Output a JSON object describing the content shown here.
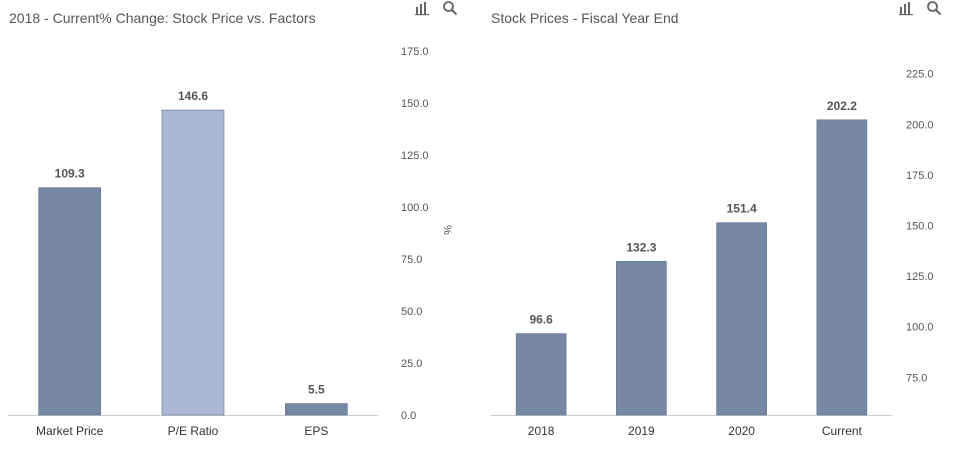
{
  "icons": {
    "chart_type": "bar-chart-icon",
    "zoom": "search-icon"
  },
  "chart_data": [
    {
      "type": "bar",
      "title": "2018 - Current% Change: Stock Price vs. Factors",
      "categories": [
        "Market Price",
        "P/E Ratio",
        "EPS"
      ],
      "values": [
        109.3,
        146.6,
        5.5
      ],
      "value_labels": [
        "109.3",
        "146.6",
        "5.5"
      ],
      "bar_colors": [
        "#7788a4",
        "#a9b9d5",
        "#7788a4"
      ],
      "ylim": [
        0,
        175
      ],
      "yticks": [
        0,
        25,
        50,
        75,
        100,
        125,
        150,
        175
      ],
      "ytick_labels": [
        "0.0",
        "25.0",
        "50.0",
        "75.0",
        "100.0",
        "125.0",
        "150.0",
        "175.0"
      ],
      "yunit": "%",
      "grid": false,
      "xlabel": "",
      "ylabel": ""
    },
    {
      "type": "bar",
      "title": "Stock Prices - Fiscal Year End",
      "categories": [
        "2018",
        "2019",
        "2020",
        "Current"
      ],
      "values": [
        96.6,
        132.3,
        151.4,
        202.2
      ],
      "value_labels": [
        "96.6",
        "132.3",
        "151.4",
        "202.2"
      ],
      "bar_colors": [
        "#7788a4",
        "#7788a4",
        "#7788a4",
        "#7788a4"
      ],
      "ylim": [
        56.4,
        236.2
      ],
      "yticks": [
        75,
        100,
        125,
        150,
        175,
        200,
        225
      ],
      "ytick_labels": [
        "75.0",
        "100.0",
        "125.0",
        "150.0",
        "175.0",
        "200.0",
        "225.0"
      ],
      "yunit": "",
      "grid": false,
      "xlabel": "",
      "ylabel": ""
    }
  ]
}
